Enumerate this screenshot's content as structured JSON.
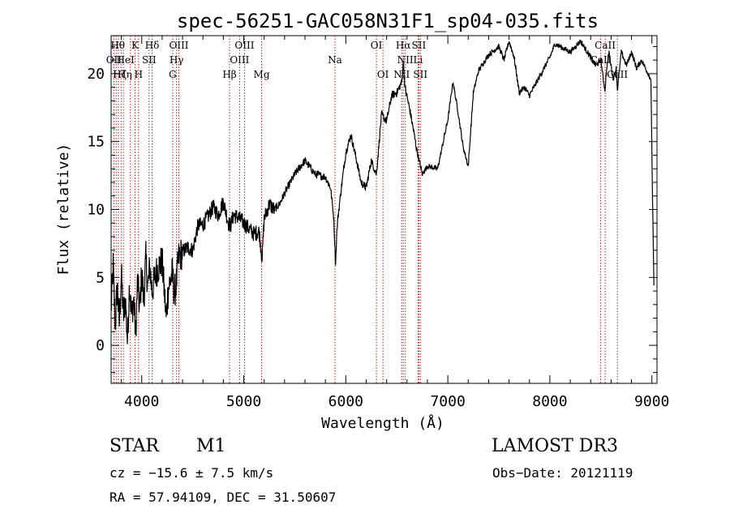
{
  "chart_data": {
    "type": "line",
    "title": "spec-56251-GAC058N31F1_sp04-035.fits",
    "xlabel": "Wavelength (Å)",
    "ylabel": "Flux (relative)",
    "xlim": [
      3700,
      9050
    ],
    "ylim": [
      -2.8,
      22.8
    ],
    "x_ticks": [
      4000,
      5000,
      6000,
      7000,
      8000,
      9000
    ],
    "y_ticks": [
      0,
      5,
      10,
      15,
      20
    ],
    "series": [
      {
        "name": "spectrum",
        "x": [
          3700,
          3720,
          3740,
          3760,
          3780,
          3800,
          3820,
          3840,
          3860,
          3880,
          3900,
          3920,
          3940,
          3960,
          3980,
          4000,
          4020,
          4040,
          4060,
          4080,
          4100,
          4150,
          4200,
          4240,
          4260,
          4300,
          4320,
          4340,
          4360,
          4400,
          4450,
          4500,
          4550,
          4600,
          4650,
          4700,
          4750,
          4800,
          4850,
          4870,
          4900,
          4950,
          5000,
          5050,
          5100,
          5150,
          5180,
          5200,
          5250,
          5300,
          5350,
          5400,
          5500,
          5600,
          5700,
          5800,
          5850,
          5880,
          5900,
          5910,
          5920,
          5950,
          6000,
          6050,
          6100,
          6150,
          6200,
          6250,
          6300,
          6350,
          6400,
          6450,
          6500,
          6550,
          6563,
          6580,
          6620,
          6650,
          6700,
          6750,
          6800,
          6900,
          7000,
          7050,
          7100,
          7150,
          7200,
          7250,
          7300,
          7400,
          7500,
          7550,
          7600,
          7650,
          7700,
          7750,
          7800,
          7900,
          8000,
          8050,
          8100,
          8200,
          8300,
          8400,
          8450,
          8500,
          8520,
          8540,
          8560,
          8580,
          8620,
          8650,
          8662,
          8700,
          8750,
          8800,
          8850,
          8900,
          8950,
          8990,
          9000,
          9010,
          9020
        ],
        "values": [
          2.6,
          5.8,
          1.4,
          4.4,
          1.6,
          5.2,
          2.1,
          3.4,
          0.3,
          4.6,
          2.2,
          3.5,
          0.8,
          4.8,
          2.6,
          5.4,
          3.2,
          6.4,
          4.3,
          5.8,
          4.0,
          5.6,
          6.2,
          2.0,
          4.2,
          5.3,
          3.8,
          4.6,
          6.4,
          6.9,
          7.2,
          7.0,
          8.8,
          8.9,
          9.5,
          10.2,
          9.6,
          10.6,
          9.0,
          8.8,
          9.6,
          9.4,
          9.0,
          8.6,
          8.2,
          8.4,
          6.4,
          9.3,
          10.4,
          10.0,
          10.4,
          11.2,
          12.6,
          13.6,
          12.6,
          12.4,
          11.6,
          9.6,
          6.0,
          8.0,
          9.2,
          11.2,
          14.2,
          15.5,
          13.8,
          12.0,
          11.6,
          13.6,
          12.6,
          17.0,
          16.5,
          18.4,
          18.6,
          19.4,
          21.0,
          19.0,
          17.6,
          16.4,
          14.2,
          12.6,
          13.2,
          13.0,
          16.6,
          19.4,
          17.2,
          14.6,
          13.2,
          18.6,
          20.2,
          21.4,
          22.0,
          21.0,
          22.4,
          21.2,
          18.6,
          19.0,
          18.4,
          19.8,
          21.2,
          22.2,
          22.0,
          21.6,
          22.4,
          21.2,
          20.6,
          21.0,
          19.8,
          18.8,
          20.6,
          21.6,
          19.6,
          20.4,
          18.8,
          21.6,
          20.6,
          21.6,
          20.4,
          21.0,
          20.2,
          19.6,
          14.2,
          9.0,
          4.4
        ]
      }
    ],
    "line_markers": [
      {
        "wl": 3727,
        "labels": [
          "OII"
        ]
      },
      {
        "wl": 3750,
        "labels": [
          "Hθ"
        ]
      },
      {
        "wl": 3771,
        "labels": [
          "Hη"
        ]
      },
      {
        "wl": 3798,
        "labels": [
          "Hζ"
        ]
      },
      {
        "wl": 3820,
        "labels": [
          "HeI"
        ]
      },
      {
        "wl": 3889,
        "labels": [
          "Hη"
        ]
      },
      {
        "wl": 3934,
        "labels": [
          "K"
        ]
      },
      {
        "wl": 3969,
        "labels": [
          "H"
        ]
      },
      {
        "wl": 4072,
        "labels": [
          "SII"
        ]
      },
      {
        "wl": 4102,
        "labels": [
          "Hδ"
        ]
      },
      {
        "wl": 4304,
        "labels": [
          "G"
        ]
      },
      {
        "wl": 4341,
        "labels": [
          "Hγ"
        ]
      },
      {
        "wl": 4364,
        "labels": [
          "OIII"
        ]
      },
      {
        "wl": 4861,
        "labels": [
          "Hβ"
        ]
      },
      {
        "wl": 4959,
        "labels": [
          "OIII"
        ]
      },
      {
        "wl": 5007,
        "labels": [
          "OIII"
        ]
      },
      {
        "wl": 5175,
        "labels": [
          "Mg"
        ]
      },
      {
        "wl": 5894,
        "labels": [
          "Na"
        ]
      },
      {
        "wl": 6300,
        "labels": [
          "OI"
        ]
      },
      {
        "wl": 6364,
        "labels": [
          "OI"
        ]
      },
      {
        "wl": 6548,
        "labels": [
          "NII"
        ]
      },
      {
        "wl": 6563,
        "labels": [
          "Hα"
        ]
      },
      {
        "wl": 6583,
        "labels": [
          "NII"
        ]
      },
      {
        "wl": 6708,
        "labels": [
          "Li"
        ]
      },
      {
        "wl": 6716,
        "labels": [
          "SII"
        ]
      },
      {
        "wl": 6731,
        "labels": [
          "SII"
        ]
      },
      {
        "wl": 8498,
        "labels": [
          "CaII"
        ]
      },
      {
        "wl": 8542,
        "labels": [
          "CaII"
        ]
      },
      {
        "wl": 8662,
        "labels": [
          "CaII"
        ]
      }
    ],
    "marker_text": [
      {
        "text": "Hθ",
        "wl": 3765,
        "row": 0
      },
      {
        "text": "K",
        "wl": 3934,
        "row": 0
      },
      {
        "text": "Hδ",
        "wl": 4102,
        "row": 0
      },
      {
        "text": "OIII",
        "wl": 4364,
        "row": 0
      },
      {
        "text": "OIII",
        "wl": 5007,
        "row": 0
      },
      {
        "text": "OI",
        "wl": 6300,
        "row": 0
      },
      {
        "text": "Hα",
        "wl": 6563,
        "row": 0
      },
      {
        "text": "SII",
        "wl": 6716,
        "row": 0
      },
      {
        "text": "CaII",
        "wl": 8542,
        "row": 0
      },
      {
        "text": "OII",
        "wl": 3727,
        "row": 1
      },
      {
        "text": "HeI",
        "wl": 3840,
        "row": 1
      },
      {
        "text": "SII",
        "wl": 4072,
        "row": 1
      },
      {
        "text": "Hγ",
        "wl": 4341,
        "row": 1
      },
      {
        "text": "OIII",
        "wl": 4959,
        "row": 1
      },
      {
        "text": "NII",
        "wl": 6583,
        "row": 1
      },
      {
        "text": "Li",
        "wl": 6708,
        "row": 1
      },
      {
        "text": "CaII",
        "wl": 8498,
        "row": 1
      },
      {
        "text": "Hζ",
        "wl": 3785,
        "row": 2
      },
      {
        "text": "Hη",
        "wl": 3835,
        "row": 2
      },
      {
        "text": "H",
        "wl": 3969,
        "row": 2
      },
      {
        "text": "G",
        "wl": 4304,
        "row": 2
      },
      {
        "text": "Hβ",
        "wl": 4861,
        "row": 2
      },
      {
        "text": "Mg",
        "wl": 5175,
        "row": 2
      },
      {
        "text": "Na",
        "wl": 5894,
        "row": 1
      },
      {
        "text": "OI",
        "wl": 6364,
        "row": 2
      },
      {
        "text": "NII",
        "wl": 6548,
        "row": 2
      },
      {
        "text": "SII",
        "wl": 6731,
        "row": 2
      },
      {
        "text": "CaII",
        "wl": 8662,
        "row": 2
      }
    ],
    "marker_color": "#b22222",
    "line_color": "#000000"
  },
  "info": {
    "object_class": "STAR",
    "subclass": "M1",
    "survey": "LAMOST DR3",
    "cz": "cz = −15.6 ± 7.5 km/s",
    "obs_date": "Obs−Date: 20121119",
    "coords": "RA =  57.94109, DEC =  31.50607"
  }
}
